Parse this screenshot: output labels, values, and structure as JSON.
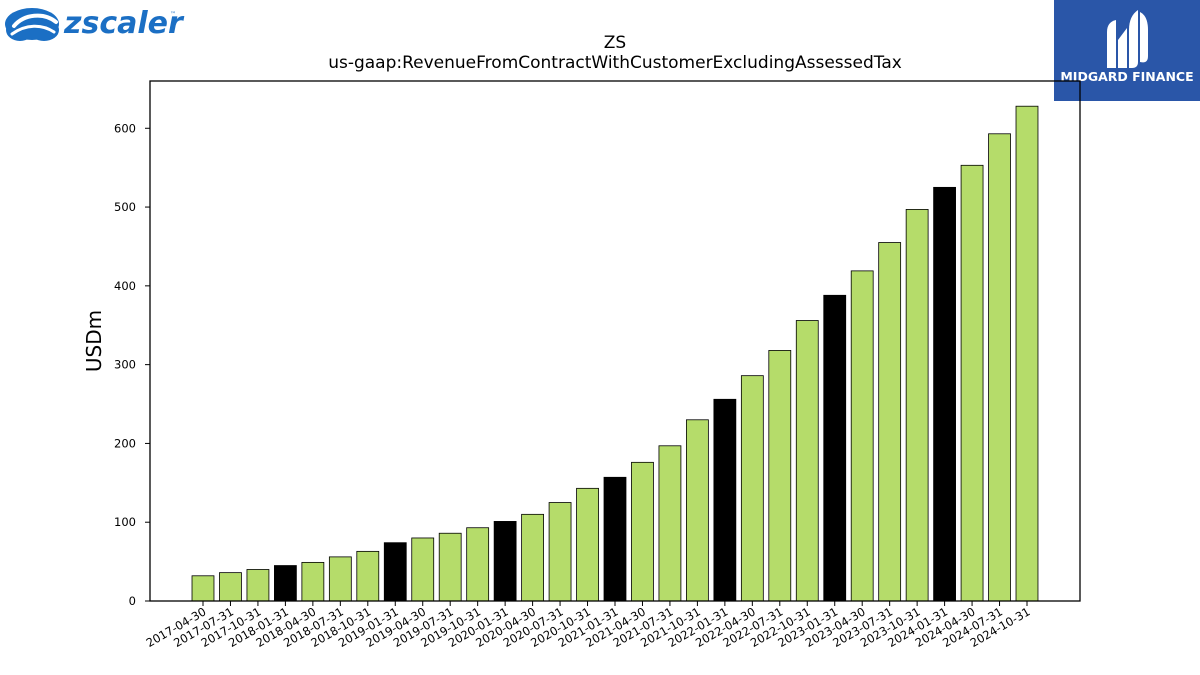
{
  "brand": {
    "left_logo_text": "zscaler",
    "right_logo_text": "MIDGARD FINANCE",
    "right_logo_bg": "#2a56a8"
  },
  "chart_data": {
    "type": "bar",
    "title": "ZS",
    "subtitle": "us-gaap:RevenueFromContractWithCustomerExcludingAssessedTax",
    "xlabel": "",
    "ylabel": "USDm",
    "ylim": [
      0,
      660
    ],
    "yticks": [
      0,
      100,
      200,
      300,
      400,
      500,
      600
    ],
    "grid": false,
    "categories": [
      "2017-04-30",
      "2017-07-31",
      "2017-10-31",
      "2018-01-31",
      "2018-04-30",
      "2018-07-31",
      "2018-10-31",
      "2019-01-31",
      "2019-04-30",
      "2019-07-31",
      "2019-10-31",
      "2020-01-31",
      "2020-04-30",
      "2020-07-31",
      "2020-10-31",
      "2021-01-31",
      "2021-04-30",
      "2021-07-31",
      "2021-10-31",
      "2022-01-31",
      "2022-04-30",
      "2022-07-31",
      "2022-10-31",
      "2023-01-31",
      "2023-04-30",
      "2023-07-31",
      "2023-10-31",
      "2024-01-31",
      "2024-04-30",
      "2024-07-31",
      "2024-10-31"
    ],
    "values": [
      32,
      36,
      40,
      45,
      49,
      56,
      63,
      74,
      80,
      86,
      93,
      101,
      110,
      125,
      143,
      157,
      176,
      197,
      230,
      256,
      286,
      318,
      356,
      388,
      419,
      455,
      497,
      525,
      553,
      593,
      628
    ],
    "highlight": [
      false,
      false,
      false,
      true,
      false,
      false,
      false,
      true,
      false,
      false,
      false,
      true,
      false,
      false,
      false,
      true,
      false,
      false,
      false,
      true,
      false,
      false,
      false,
      true,
      false,
      false,
      false,
      true,
      false,
      false,
      false
    ],
    "colors": {
      "bar": "#b5dc6a",
      "bar_highlight": "#000000",
      "edge": "#000000"
    }
  }
}
